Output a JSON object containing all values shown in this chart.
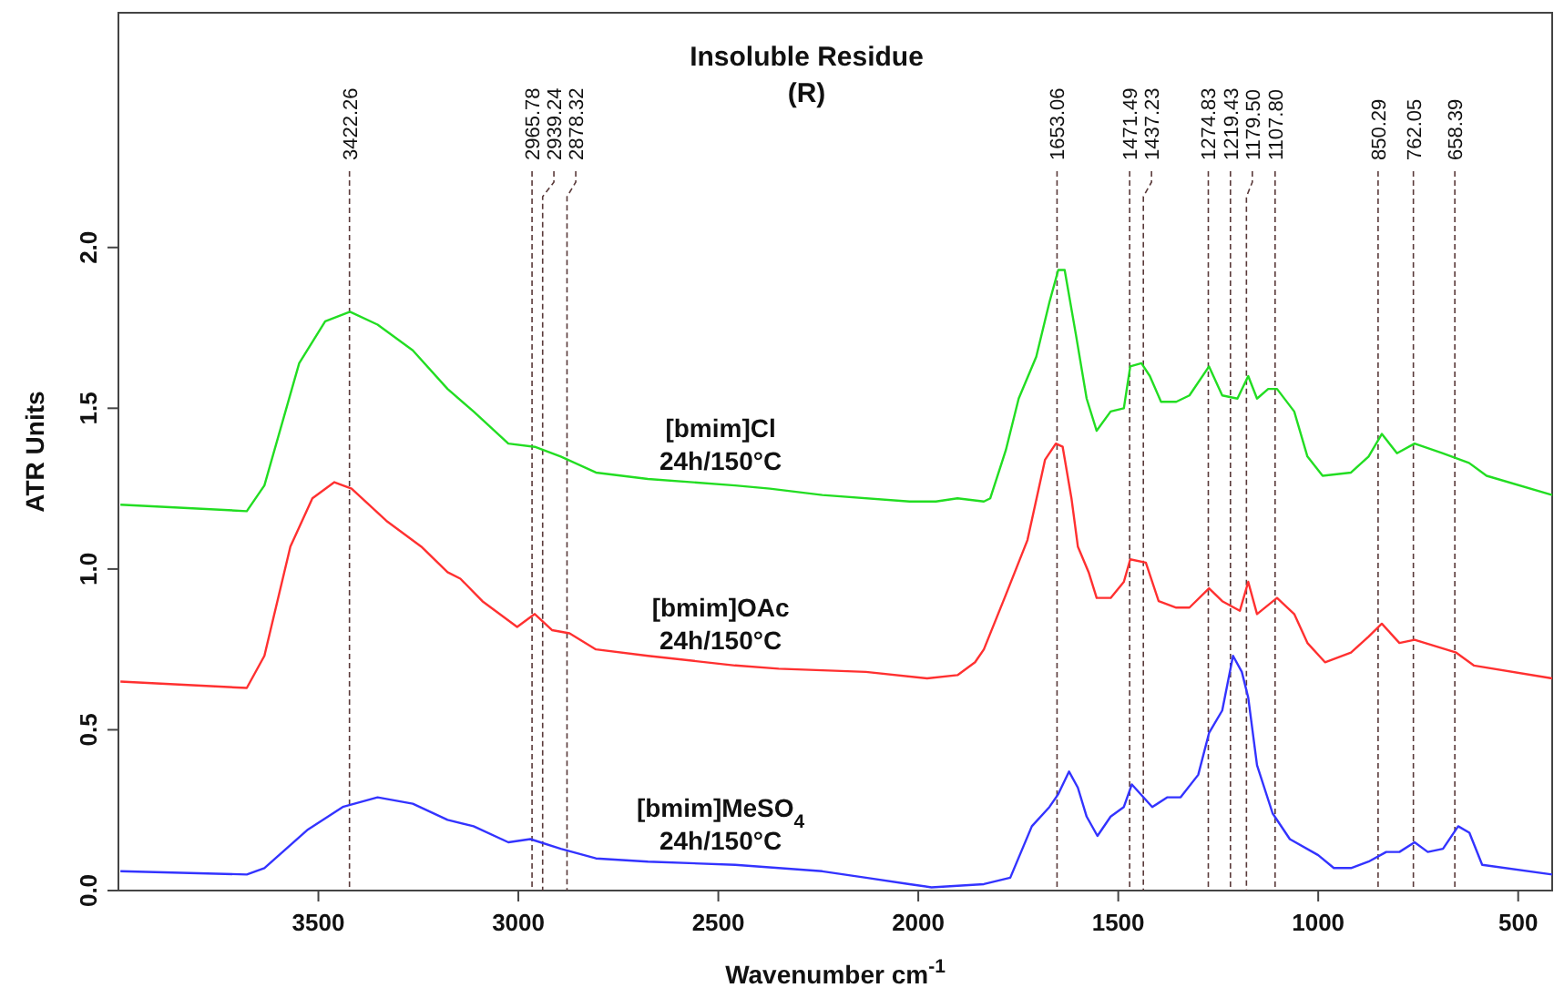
{
  "chart_data": {
    "type": "line",
    "title": "Insoluble Residue\n(R)",
    "xlabel": "Wavenumber cm$^{-1}$",
    "ylabel": "ATR Units",
    "xlim": [
      4000,
      415
    ],
    "ylim": [
      0,
      2.73
    ],
    "xticks": [
      3500,
      3000,
      2500,
      2000,
      1500,
      1000,
      500
    ],
    "yticks": [
      {
        "value": 0,
        "label": "0.0"
      },
      {
        "value": 0.5,
        "label": "0.5"
      },
      {
        "value": 1,
        "label": "1.0"
      },
      {
        "value": 1.5,
        "label": "1.5"
      },
      {
        "value": 2,
        "label": "2.0"
      }
    ],
    "series": [
      {
        "name": "[bmim]Cl\n24h/150°C",
        "color": "#22dd22",
        "x": [
          3995,
          3679,
          3635,
          3548,
          3483,
          3421,
          3352,
          3264,
          3177,
          3112,
          3025,
          2959,
          2894,
          2806,
          2676,
          2458,
          2371,
          2240,
          2022,
          1956,
          1902,
          1836,
          1820,
          1781,
          1749,
          1705,
          1672,
          1650,
          1634,
          1606,
          1579,
          1554,
          1519,
          1486,
          1470,
          1442,
          1421,
          1393,
          1355,
          1322,
          1273,
          1240,
          1202,
          1175,
          1153,
          1125,
          1103,
          1060,
          1027,
          989,
          918,
          874,
          841,
          803,
          759,
          688,
          623,
          579,
          415
        ],
        "values": [
          1.2,
          1.18,
          1.26,
          1.64,
          1.77,
          1.8,
          1.76,
          1.68,
          1.56,
          1.49,
          1.39,
          1.38,
          1.35,
          1.3,
          1.28,
          1.26,
          1.25,
          1.23,
          1.21,
          1.21,
          1.22,
          1.21,
          1.22,
          1.37,
          1.53,
          1.66,
          1.83,
          1.93,
          1.93,
          1.73,
          1.53,
          1.43,
          1.49,
          1.5,
          1.63,
          1.64,
          1.6,
          1.52,
          1.52,
          1.54,
          1.63,
          1.54,
          1.53,
          1.6,
          1.53,
          1.56,
          1.56,
          1.49,
          1.35,
          1.29,
          1.3,
          1.35,
          1.42,
          1.36,
          1.39,
          1.36,
          1.33,
          1.29,
          1.23
        ]
      },
      {
        "name": "[bmim]OAc\n24h/150°C",
        "color": "#ff3030",
        "x": [
          3995,
          3679,
          3635,
          3570,
          3515,
          3460,
          3417,
          3330,
          3243,
          3177,
          3145,
          3090,
          3003,
          2959,
          2916,
          2872,
          2806,
          2676,
          2458,
          2349,
          2131,
          1978,
          1902,
          1858,
          1836,
          1781,
          1727,
          1683,
          1656,
          1639,
          1617,
          1601,
          1574,
          1554,
          1519,
          1486,
          1470,
          1431,
          1399,
          1355,
          1322,
          1273,
          1240,
          1196,
          1175,
          1153,
          1103,
          1060,
          1027,
          983,
          918,
          874,
          841,
          797,
          759,
          655,
          611,
          415
        ],
        "values": [
          0.65,
          0.63,
          0.73,
          1.07,
          1.22,
          1.27,
          1.25,
          1.15,
          1.07,
          0.99,
          0.97,
          0.9,
          0.82,
          0.86,
          0.81,
          0.8,
          0.75,
          0.73,
          0.7,
          0.69,
          0.68,
          0.66,
          0.67,
          0.71,
          0.75,
          0.92,
          1.09,
          1.34,
          1.39,
          1.38,
          1.22,
          1.07,
          0.99,
          0.91,
          0.91,
          0.96,
          1.03,
          1.02,
          0.9,
          0.88,
          0.88,
          0.94,
          0.9,
          0.87,
          0.96,
          0.86,
          0.91,
          0.86,
          0.77,
          0.71,
          0.74,
          0.79,
          0.83,
          0.77,
          0.78,
          0.74,
          0.7,
          0.66
        ]
      },
      {
        "name": "[bmim]MeSO$_{4}$\n24h/150°C",
        "color": "#3333ff",
        "x": [
          3995,
          3679,
          3635,
          3526,
          3439,
          3352,
          3264,
          3177,
          3112,
          3025,
          2970,
          2894,
          2806,
          2676,
          2458,
          2240,
          2131,
          2022,
          1967,
          1836,
          1770,
          1716,
          1672,
          1650,
          1623,
          1601,
          1579,
          1552,
          1519,
          1486,
          1466,
          1415,
          1377,
          1344,
          1300,
          1273,
          1240,
          1213,
          1191,
          1175,
          1153,
          1114,
          1071,
          1000,
          961,
          918,
          874,
          830,
          797,
          759,
          726,
          688,
          650,
          622,
          590,
          415
        ],
        "values": [
          0.06,
          0.05,
          0.07,
          0.19,
          0.26,
          0.29,
          0.27,
          0.22,
          0.2,
          0.15,
          0.16,
          0.13,
          0.1,
          0.09,
          0.08,
          0.06,
          0.04,
          0.02,
          0.01,
          0.02,
          0.04,
          0.2,
          0.26,
          0.3,
          0.37,
          0.32,
          0.23,
          0.17,
          0.23,
          0.26,
          0.33,
          0.26,
          0.29,
          0.29,
          0.36,
          0.49,
          0.56,
          0.73,
          0.68,
          0.6,
          0.39,
          0.24,
          0.16,
          0.11,
          0.07,
          0.07,
          0.09,
          0.12,
          0.12,
          0.15,
          0.12,
          0.13,
          0.2,
          0.18,
          0.08,
          0.05
        ]
      }
    ],
    "ref_lines": [
      {
        "axis": "x",
        "value": 3422.26,
        "label": "3422.26",
        "color": "#5a3a3a",
        "line_style": "dashed"
      },
      {
        "axis": "x",
        "value": 2965.78,
        "label": "2965.78",
        "color": "#5a3a3a",
        "line_style": "dashed"
      },
      {
        "axis": "x",
        "value": 2939.24,
        "label": "2939.24",
        "color": "#5a3a3a",
        "line_style": "dashed"
      },
      {
        "axis": "x",
        "value": 2878.32,
        "label": "2878.32",
        "color": "#5a3a3a",
        "line_style": "dashed"
      },
      {
        "axis": "x",
        "value": 1653.06,
        "label": "1653.06",
        "color": "#5a3a3a",
        "line_style": "dashed"
      },
      {
        "axis": "x",
        "value": 1471.49,
        "label": "1471.49",
        "color": "#5a3a3a",
        "line_style": "dashed"
      },
      {
        "axis": "x",
        "value": 1437.23,
        "label": "1437.23",
        "color": "#5a3a3a",
        "line_style": "dashed"
      },
      {
        "axis": "x",
        "value": 1274.83,
        "label": "1274.83",
        "color": "#5a3a3a",
        "line_style": "dashed"
      },
      {
        "axis": "x",
        "value": 1219.43,
        "label": "1219.43",
        "color": "#5a3a3a",
        "line_style": "dashed"
      },
      {
        "axis": "x",
        "value": 1179.5,
        "label": "1179.50",
        "color": "#5a3a3a",
        "line_style": "dashed"
      },
      {
        "axis": "x",
        "value": 1107.8,
        "label": "1107.80",
        "color": "#5a3a3a",
        "line_style": "dashed"
      },
      {
        "axis": "x",
        "value": 850.29,
        "label": "850.29",
        "color": "#5a3a3a",
        "line_style": "dashed"
      },
      {
        "axis": "x",
        "value": 762.05,
        "label": "762.05",
        "color": "#5a3a3a",
        "line_style": "dashed"
      },
      {
        "axis": "x",
        "value": 658.39,
        "label": "658.39",
        "color": "#5a3a3a",
        "line_style": "dashed"
      }
    ]
  }
}
